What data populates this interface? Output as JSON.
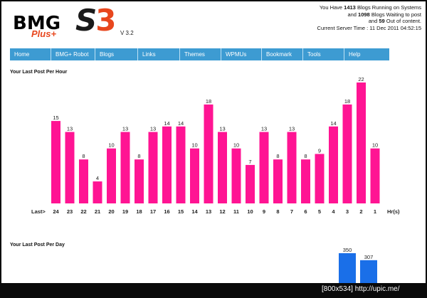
{
  "header": {
    "logo_text_1": "BMG",
    "logo_text_2": "Plus+",
    "logo_text_3": "S",
    "logo_text_4": "3",
    "version": "V 3.2",
    "status_prefix_1": "You Have ",
    "blogs_running": "1413",
    "status_suffix_1": " Blogs Running on Systems",
    "status_prefix_2": "and ",
    "blogs_waiting": "1098",
    "status_suffix_2": " Blogs Waiting to post",
    "status_prefix_3": "and ",
    "out_of_content": "59",
    "status_suffix_3": " Out of content.",
    "server_time": "Current Server Time : 11 Dec 2011 04:52:15"
  },
  "nav": [
    "Home",
    "BMG+ Robot",
    "Blogs",
    "Links",
    "Themes",
    "WPMUs",
    "Bookmark",
    "Tools",
    "Help"
  ],
  "sections": {
    "per_hour_title": "Your Last Post Per Hour",
    "per_day_title": "Your Last Post Per Day"
  },
  "chart_data": [
    {
      "type": "bar",
      "title": "Your Last Post Per Hour",
      "categories": [
        "24",
        "23",
        "22",
        "21",
        "20",
        "19",
        "18",
        "17",
        "16",
        "15",
        "14",
        "13",
        "12",
        "11",
        "10",
        "9",
        "8",
        "7",
        "6",
        "5",
        "4",
        "3",
        "2",
        "1"
      ],
      "values": [
        15,
        13,
        8,
        4,
        10,
        13,
        8,
        13,
        14,
        14,
        10,
        18,
        13,
        10,
        7,
        13,
        8,
        13,
        8,
        9,
        14,
        18,
        22,
        10
      ],
      "xlabel_left": "Last>",
      "xlabel_right": "Hr(s)",
      "ylim": [
        0,
        22
      ],
      "color": "#ff1493",
      "grid": false
    },
    {
      "type": "bar",
      "title": "Your Last Post Per Day",
      "categories": [
        "",
        ""
      ],
      "values": [
        350,
        307
      ],
      "ylim": [
        0,
        350
      ],
      "color": "#1a6fe8",
      "grid": false
    }
  ],
  "footer": "[800x534] http://upic.me/"
}
